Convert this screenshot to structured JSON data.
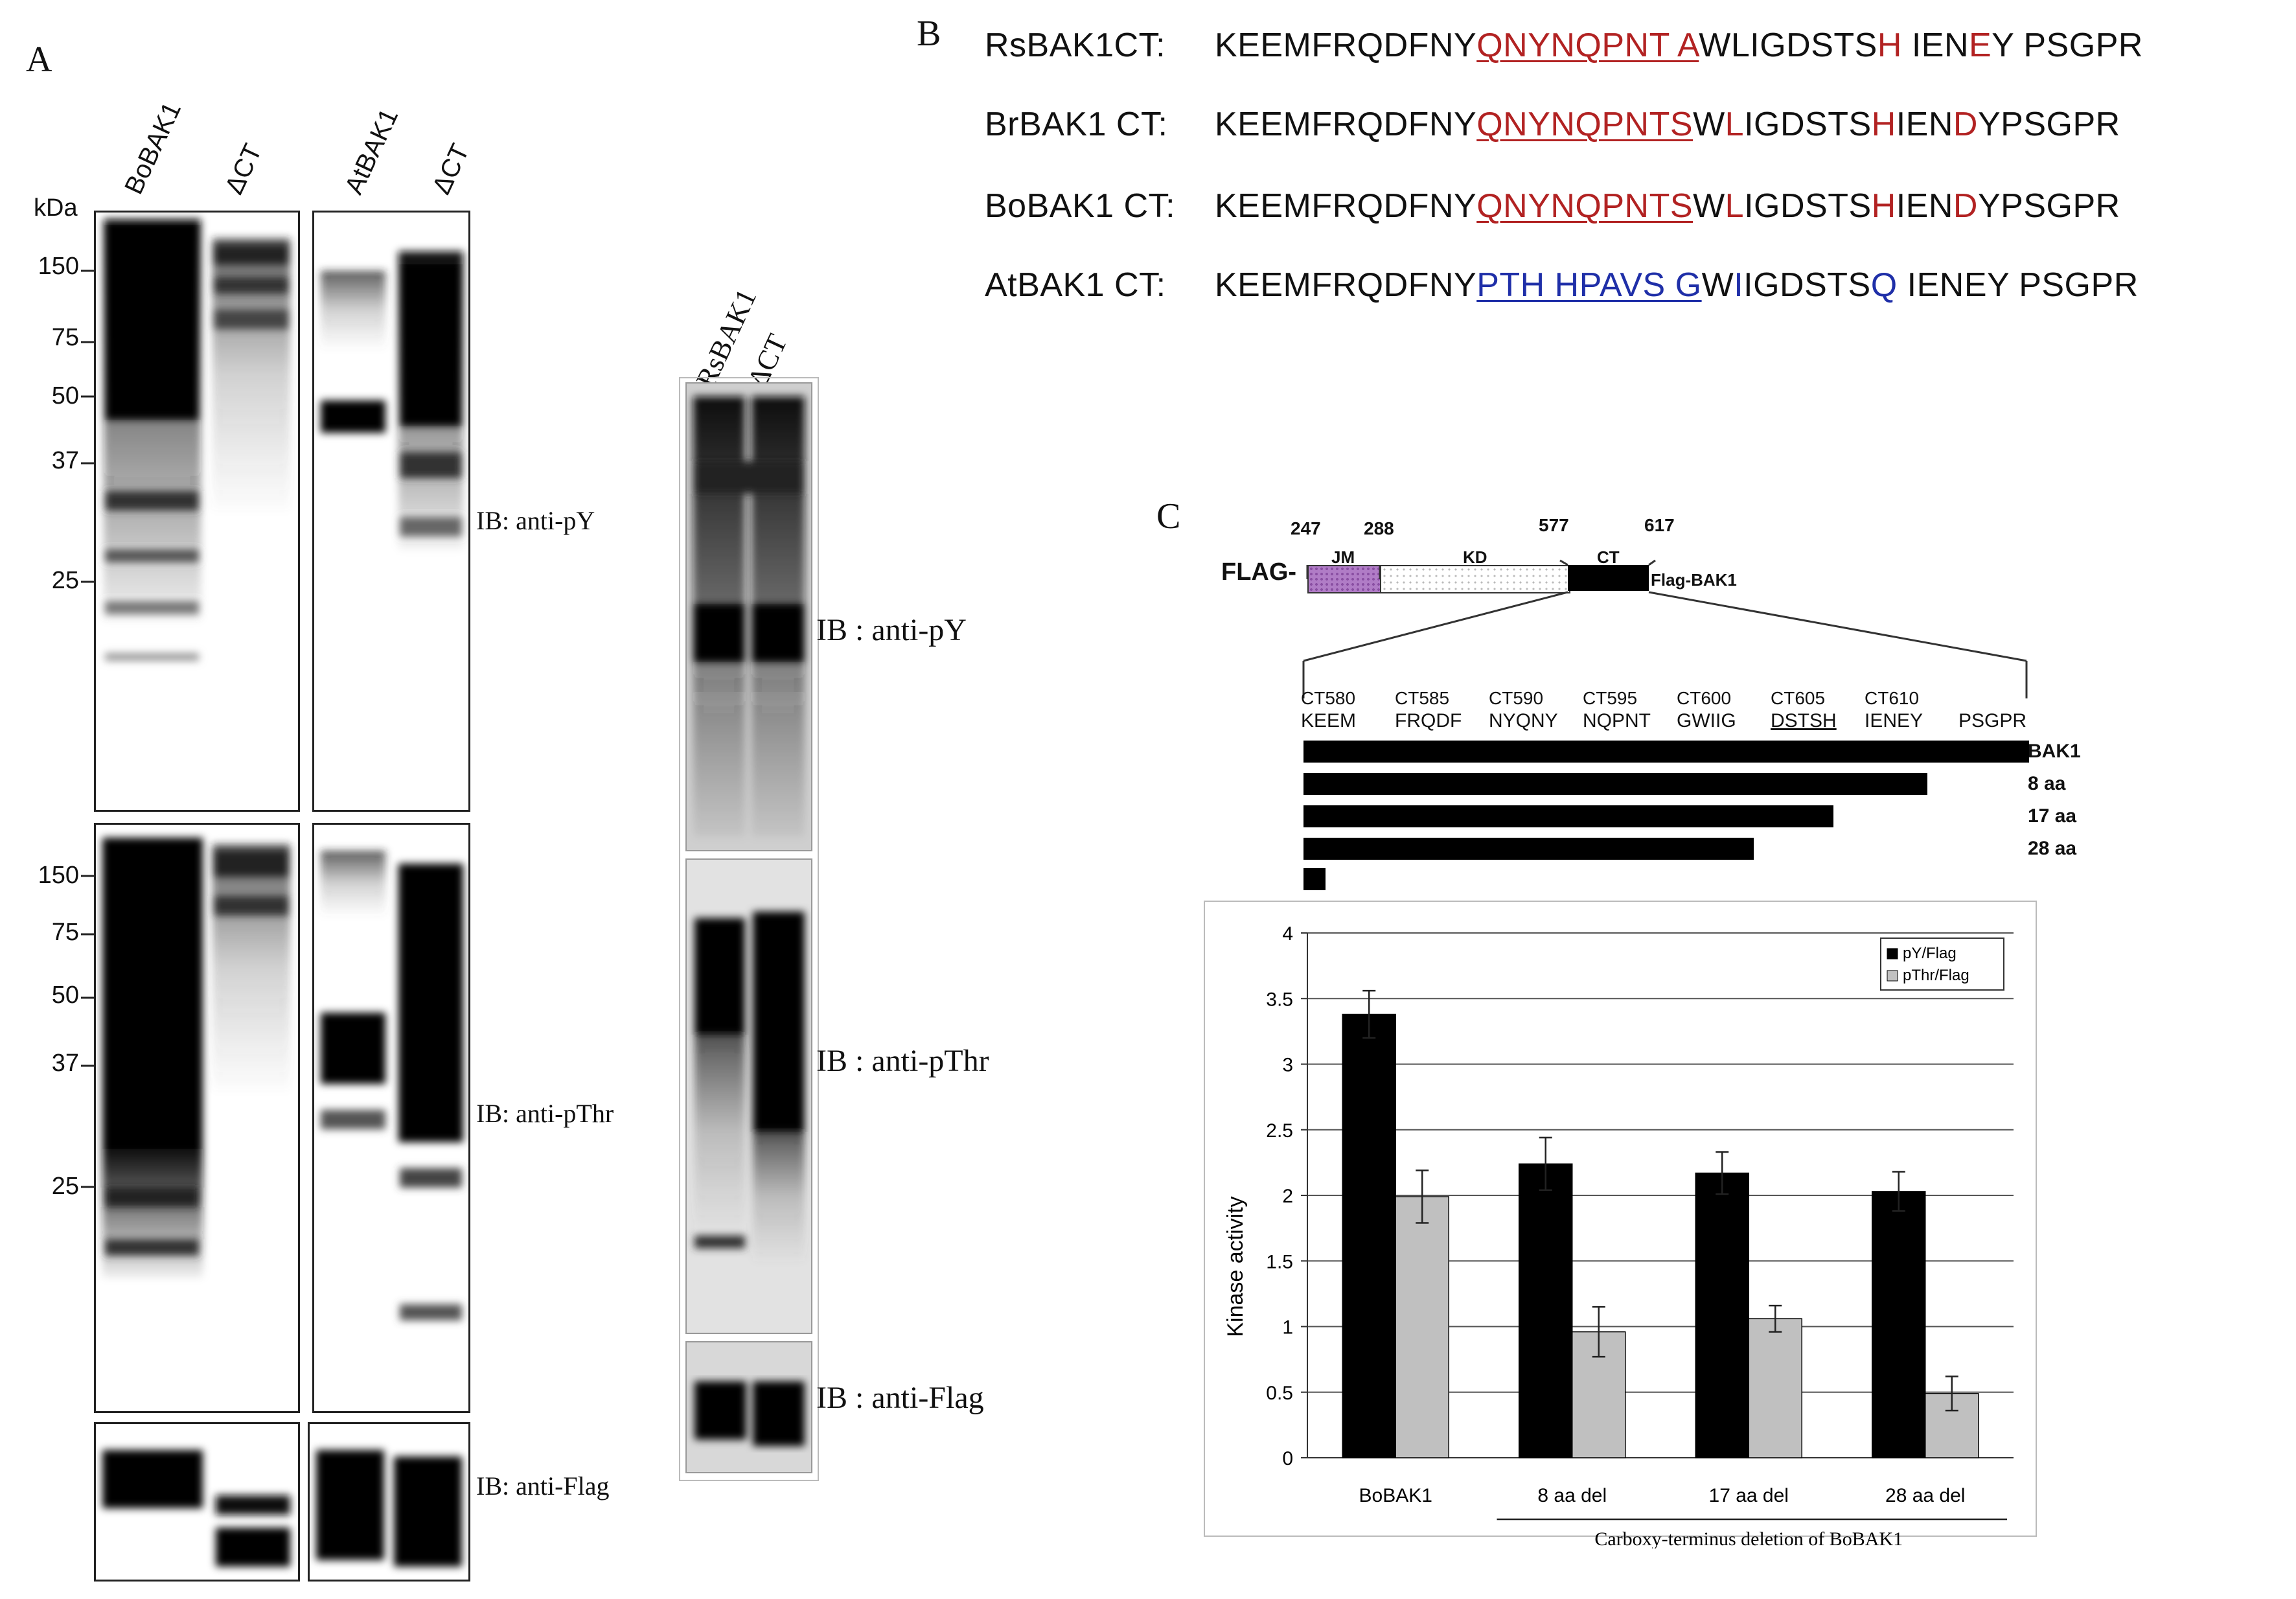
{
  "panel_a": {
    "letter": "A",
    "kda_label": "kDa",
    "left_lanes": [
      "BoBAK1",
      "ΔCT"
    ],
    "right_lanes": [
      "AtBAK1",
      "ΔCT"
    ],
    "mw_top": [
      "150",
      "75",
      "50",
      "37",
      "25"
    ],
    "mw_mid": [
      "150",
      "75",
      "50",
      "37",
      "25"
    ],
    "ib_py": "IB: anti-pY",
    "ib_pthr": "IB: anti-pThr",
    "ib_flag": "IB: anti-Flag",
    "rs_lanes": [
      "RsBAK1",
      "ΔCT"
    ],
    "rs_ib_py": "IB : anti-pY",
    "rs_ib_pthr": "IB : anti-pThr",
    "rs_ib_flag": "IB : anti-Flag"
  },
  "panel_b": {
    "letter": "B",
    "rows": [
      {
        "label": "RsBAK1CT:",
        "segments": [
          {
            "t": "KEEMFRQDFNY",
            "s": ""
          },
          {
            "t": "QNYNQPNT A",
            "s": "redu"
          },
          {
            "t": "WLIGDSTS",
            "s": ""
          },
          {
            "t": "H",
            "s": "red"
          },
          {
            "t": " IEN",
            "s": ""
          },
          {
            "t": "E",
            "s": "red"
          },
          {
            "t": "Y PSGPR",
            "s": ""
          }
        ]
      },
      {
        "label": "BrBAK1 CT:",
        "segments": [
          {
            "t": "KEEMFRQDFNY",
            "s": ""
          },
          {
            "t": "QNYNQPNTS",
            "s": "redu"
          },
          {
            "t": "W",
            "s": ""
          },
          {
            "t": "L",
            "s": "red"
          },
          {
            "t": "IGDSTS",
            "s": ""
          },
          {
            "t": "H",
            "s": "red"
          },
          {
            "t": "IEN",
            "s": ""
          },
          {
            "t": "D",
            "s": "red"
          },
          {
            "t": "YPSGPR",
            "s": ""
          }
        ]
      },
      {
        "label": "BoBAK1 CT:",
        "segments": [
          {
            "t": "KEEMFRQDFNY",
            "s": ""
          },
          {
            "t": "QNYNQPNTS",
            "s": "redu"
          },
          {
            "t": "W",
            "s": ""
          },
          {
            "t": "L",
            "s": "red"
          },
          {
            "t": "IGDSTS",
            "s": ""
          },
          {
            "t": "H",
            "s": "red"
          },
          {
            "t": "IEN",
            "s": ""
          },
          {
            "t": "D",
            "s": "red"
          },
          {
            "t": "YPSGPR",
            "s": ""
          }
        ]
      },
      {
        "label": "AtBAK1 CT:",
        "segments": [
          {
            "t": "KEEMFRQDFNY",
            "s": ""
          },
          {
            "t": "PTH HPAVS G",
            "s": "blueu"
          },
          {
            "t": "W",
            "s": ""
          },
          {
            "t": "I",
            "s": "blue"
          },
          {
            "t": "IGDSTS",
            "s": ""
          },
          {
            "t": "Q",
            "s": "blue"
          },
          {
            "t": " IENEY PSGPR",
            "s": ""
          }
        ]
      }
    ]
  },
  "panel_c": {
    "letter": "C",
    "domain": {
      "flag": "FLAG-",
      "jm": "JM",
      "kd": "KD",
      "ct": "CT",
      "construct": "Flag-BAK1",
      "positions": [
        "247",
        "288",
        "577",
        "617"
      ]
    },
    "ct_positions": [
      {
        "pos": "CT580",
        "seq": "KEEM"
      },
      {
        "pos": "CT585",
        "seq": "FRQDF"
      },
      {
        "pos": "CT590",
        "seq": "NYQNY"
      },
      {
        "pos": "CT595",
        "seq": "NQPNT"
      },
      {
        "pos": "CT600",
        "seq": "GWIIG"
      },
      {
        "pos": "CT605",
        "seq": "DSTSH"
      },
      {
        "pos": "CT610",
        "seq": "IENEY"
      },
      {
        "pos": "",
        "seq": "PSGPR"
      }
    ],
    "deletions": [
      {
        "label": "BAK1",
        "fraction": 1.0
      },
      {
        "label": "8 aa",
        "fraction": 0.86
      },
      {
        "label": "17 aa",
        "fraction": 0.73
      },
      {
        "label": "28 aa",
        "fraction": 0.62
      },
      {
        "label": "",
        "fraction": 0.03
      }
    ]
  },
  "chart_data": {
    "type": "bar",
    "categories": [
      "BoBAK1",
      "8 aa del",
      "17 aa del",
      "28 aa del"
    ],
    "series": [
      {
        "name": "pY/Flag",
        "values": [
          3.38,
          2.24,
          2.17,
          2.03
        ],
        "errors": [
          0.18,
          0.2,
          0.16,
          0.15
        ],
        "color": "#000000"
      },
      {
        "name": "pThr/Flag",
        "values": [
          1.99,
          0.96,
          1.06,
          0.49
        ],
        "errors": [
          0.2,
          0.19,
          0.1,
          0.13
        ],
        "color": "#c0c0c0"
      }
    ],
    "ylabel": "Kinase activity",
    "xlabel": "Carboxy-terminus deletion of BoBAK1",
    "ylim": [
      0,
      4
    ],
    "yticks": [
      "0",
      "0.5",
      "1",
      "1.5",
      "2",
      "2.5",
      "3",
      "3.5",
      "4"
    ],
    "grid": true,
    "legend_position": "top-right"
  }
}
